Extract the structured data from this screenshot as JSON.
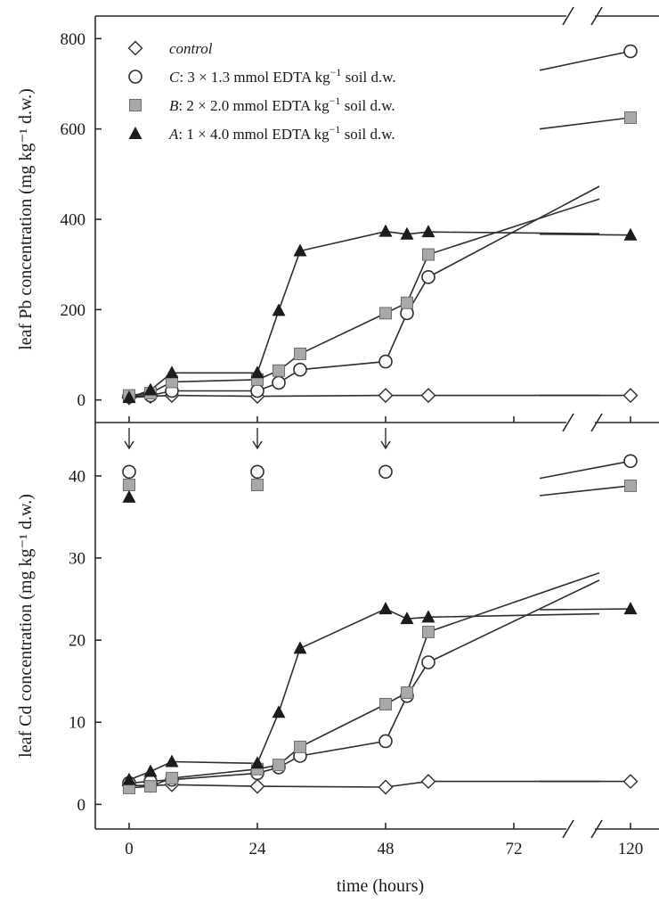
{
  "colors": {
    "axis": "#2a2a2a",
    "line": "#2e2e2e",
    "marker_square_fill": "#a8a8a8",
    "marker_triangle_fill": "#1c1c1c",
    "marker_open_fill": "#ffffff"
  },
  "chart_data": [
    {
      "type": "line",
      "panel": "top",
      "ylabel": "leaf Pb concentration (mg kg⁻¹ d.w.)",
      "xlabel": "",
      "xlim": [
        -4,
        128
      ],
      "ylim": [
        -50,
        850
      ],
      "x_axis_break": [
        90,
        98
      ],
      "x_ticks": [
        0,
        24,
        48,
        72,
        120
      ],
      "y_ticks": [
        0,
        200,
        400,
        600,
        800
      ],
      "y_tick_labels": [
        "0",
        "200",
        "400",
        "600",
        "800"
      ],
      "legend": {
        "placement": "top-left",
        "entries": [
          {
            "series": "control",
            "pre": "",
            "italic": "control",
            "post": "",
            "sup": "",
            "tail": ""
          },
          {
            "series": "C",
            "pre": "",
            "italic": "C",
            "post": ": 3 × 1.3 mmol EDTA kg",
            "sup": "−1",
            "tail": " soil d.w."
          },
          {
            "series": "B",
            "pre": "",
            "italic": "B",
            "post": ": 2 × 2.0 mmol EDTA kg",
            "sup": "−1",
            "tail": " soil d.w."
          },
          {
            "series": "A",
            "pre": "",
            "italic": "A",
            "post": ": 1 × 4.0 mmol EDTA kg",
            "sup": "−1",
            "tail": " soil d.w."
          }
        ]
      },
      "series": [
        {
          "name": "control",
          "marker": "diamond-open",
          "points": [
            [
              0,
              5
            ],
            [
              4,
              8
            ],
            [
              8,
              10
            ],
            [
              24,
              8
            ],
            [
              48,
              10
            ],
            [
              56,
              10
            ],
            [
              120,
              10
            ]
          ],
          "segments": [
            {
              "x": [
                0,
                4,
                8,
                24,
                48,
                56,
                88
              ],
              "y": [
                5,
                8,
                10,
                8,
                10,
                10,
                10
              ]
            },
            {
              "x": [
                103,
                120
              ],
              "y": [
                10,
                10
              ]
            }
          ]
        },
        {
          "name": "C",
          "marker": "circle-open",
          "points": [
            [
              0,
              8
            ],
            [
              4,
              10
            ],
            [
              8,
              20
            ],
            [
              24,
              20
            ],
            [
              28,
              38
            ],
            [
              32,
              67
            ],
            [
              48,
              85
            ],
            [
              52,
              192
            ],
            [
              56,
              272
            ],
            [
              120,
              772
            ]
          ],
          "segments": [
            {
              "x": [
                0,
                4,
                8,
                24,
                28,
                32,
                48,
                52,
                56,
                88
              ],
              "y": [
                8,
                10,
                20,
                20,
                38,
                67,
                85,
                192,
                272,
                473
              ]
            },
            {
              "x": [
                103,
                120
              ],
              "y": [
                730,
                772
              ]
            }
          ]
        },
        {
          "name": "B",
          "marker": "square-filled",
          "points": [
            [
              0,
              10
            ],
            [
              4,
              15
            ],
            [
              8,
              40
            ],
            [
              24,
              45
            ],
            [
              28,
              65
            ],
            [
              32,
              102
            ],
            [
              48,
              192
            ],
            [
              52,
              215
            ],
            [
              56,
              322
            ],
            [
              120,
              625
            ]
          ],
          "segments": [
            {
              "x": [
                0,
                4,
                8,
                24,
                28,
                32,
                48,
                52,
                56,
                88
              ],
              "y": [
                10,
                15,
                40,
                45,
                65,
                102,
                192,
                215,
                322,
                445
              ]
            },
            {
              "x": [
                103,
                120
              ],
              "y": [
                600,
                625
              ]
            }
          ]
        },
        {
          "name": "A",
          "marker": "triangle-filled",
          "points": [
            [
              0,
              5
            ],
            [
              4,
              22
            ],
            [
              8,
              60
            ],
            [
              24,
              60
            ],
            [
              28,
              198
            ],
            [
              32,
              330
            ],
            [
              48,
              373
            ],
            [
              52,
              367
            ],
            [
              56,
              372
            ],
            [
              120,
              365
            ]
          ],
          "segments": [
            {
              "x": [
                0,
                4,
                8,
                24,
                28,
                32,
                48,
                52,
                56,
                88
              ],
              "y": [
                5,
                22,
                60,
                60,
                198,
                330,
                373,
                367,
                372,
                368
              ]
            },
            {
              "x": [
                103,
                120
              ],
              "y": [
                367,
                365
              ]
            }
          ]
        }
      ]
    },
    {
      "type": "line",
      "panel": "bottom",
      "ylabel": "leaf Cd concentration (mg kg⁻¹ d.w.)",
      "xlabel": "time (hours)",
      "xlim": [
        -4,
        128
      ],
      "ylim": [
        -3,
        46.5
      ],
      "x_axis_break": [
        90,
        98
      ],
      "x_ticks": [
        0,
        24,
        48,
        72,
        120
      ],
      "x_tick_labels": [
        "0",
        "24",
        "48",
        "72",
        "120"
      ],
      "y_ticks": [
        0,
        10,
        20,
        30,
        40
      ],
      "y_tick_labels": [
        "0",
        "10",
        "20",
        "30",
        "40"
      ],
      "arrows_at_x": [
        0,
        24,
        48
      ],
      "series": [
        {
          "name": "control",
          "marker": "diamond-open",
          "points": [
            [
              0,
              2.3
            ],
            [
              4,
              2.3
            ],
            [
              8,
              2.4
            ],
            [
              24,
              2.2
            ],
            [
              48,
              2.1
            ],
            [
              56,
              2.8
            ],
            [
              120,
              2.8
            ]
          ],
          "segments": [
            {
              "x": [
                0,
                4,
                8,
                24,
                48,
                56,
                88
              ],
              "y": [
                2.3,
                2.3,
                2.4,
                2.2,
                2.1,
                2.8,
                2.8
              ]
            },
            {
              "x": [
                103,
                120
              ],
              "y": [
                2.8,
                2.8
              ]
            }
          ]
        },
        {
          "name": "C",
          "marker": "circle-open",
          "points": [
            [
              0,
              2.6
            ],
            [
              4,
              2.8
            ],
            [
              8,
              3.0
            ],
            [
              24,
              3.8
            ],
            [
              28,
              4.5
            ],
            [
              32,
              5.9
            ],
            [
              48,
              7.7
            ],
            [
              52,
              13.2
            ],
            [
              56,
              17.3
            ],
            [
              0,
              40.5
            ],
            [
              24,
              40.5
            ],
            [
              48,
              40.5
            ],
            [
              120,
              41.8
            ]
          ],
          "segments": [
            {
              "x": [
                0,
                4,
                8,
                24,
                28,
                32,
                48,
                52,
                56,
                88
              ],
              "y": [
                2.6,
                2.8,
                3.0,
                3.8,
                4.5,
                5.9,
                7.7,
                13.2,
                17.3,
                27.3
              ]
            },
            {
              "x": [
                103,
                120
              ],
              "y": [
                39.7,
                41.8
              ]
            }
          ]
        },
        {
          "name": "B",
          "marker": "square-filled",
          "points": [
            [
              0,
              2.0
            ],
            [
              4,
              2.2
            ],
            [
              8,
              3.2
            ],
            [
              24,
              4.3
            ],
            [
              28,
              4.8
            ],
            [
              32,
              7.0
            ],
            [
              48,
              12.2
            ],
            [
              52,
              13.6
            ],
            [
              56,
              21.0
            ],
            [
              0,
              38.9
            ],
            [
              24,
              38.9
            ],
            [
              120,
              38.8
            ]
          ],
          "segments": [
            {
              "x": [
                0,
                4,
                8,
                24,
                28,
                32,
                48,
                52,
                56,
                88
              ],
              "y": [
                2.0,
                2.2,
                3.2,
                4.3,
                4.8,
                7.0,
                12.2,
                13.6,
                21.0,
                28.2
              ]
            },
            {
              "x": [
                103,
                120
              ],
              "y": [
                37.6,
                38.8
              ]
            }
          ]
        },
        {
          "name": "A",
          "marker": "triangle-filled",
          "points": [
            [
              0,
              3.0
            ],
            [
              4,
              4.0
            ],
            [
              8,
              5.2
            ],
            [
              24,
              5.0
            ],
            [
              28,
              11.2
            ],
            [
              32,
              19.0
            ],
            [
              48,
              23.8
            ],
            [
              52,
              22.6
            ],
            [
              56,
              22.8
            ],
            [
              0,
              37.4
            ],
            [
              120,
              23.8
            ]
          ],
          "segments": [
            {
              "x": [
                0,
                4,
                8,
                24,
                28,
                32,
                48,
                52,
                56,
                88
              ],
              "y": [
                3.0,
                4.0,
                5.2,
                5.0,
                11.2,
                19.0,
                23.8,
                22.6,
                22.8,
                23.2
              ]
            },
            {
              "x": [
                103,
                120
              ],
              "y": [
                23.7,
                23.8
              ]
            }
          ]
        }
      ]
    }
  ]
}
